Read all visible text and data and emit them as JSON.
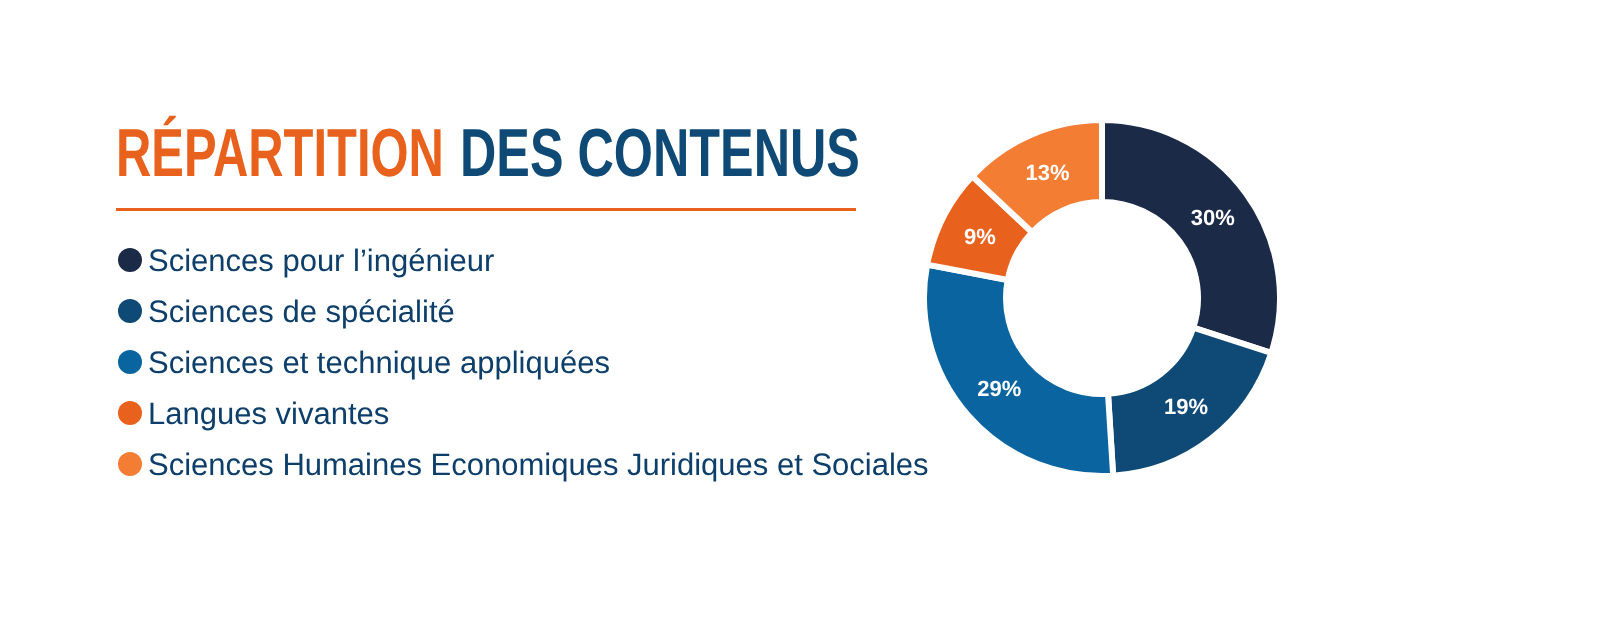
{
  "chart_data": {
    "type": "donut",
    "title": "RÉPARTITION DES CONTENUS",
    "categories": [
      "Sciences pour l’ingénieur",
      "Sciences de spécialité",
      "Sciences et technique appliquées",
      "Langues vivantes",
      "Sciences Humaines Economiques Juridiques et Sociales"
    ],
    "values": [
      30,
      19,
      29,
      9,
      13
    ],
    "colors": [
      "#1b2a47",
      "#0e4a75",
      "#0a64a0",
      "#e8621e",
      "#f47d34"
    ],
    "value_labels": [
      "30%",
      "19%",
      "29%",
      "9%",
      "13%"
    ],
    "legend": "left"
  }
}
